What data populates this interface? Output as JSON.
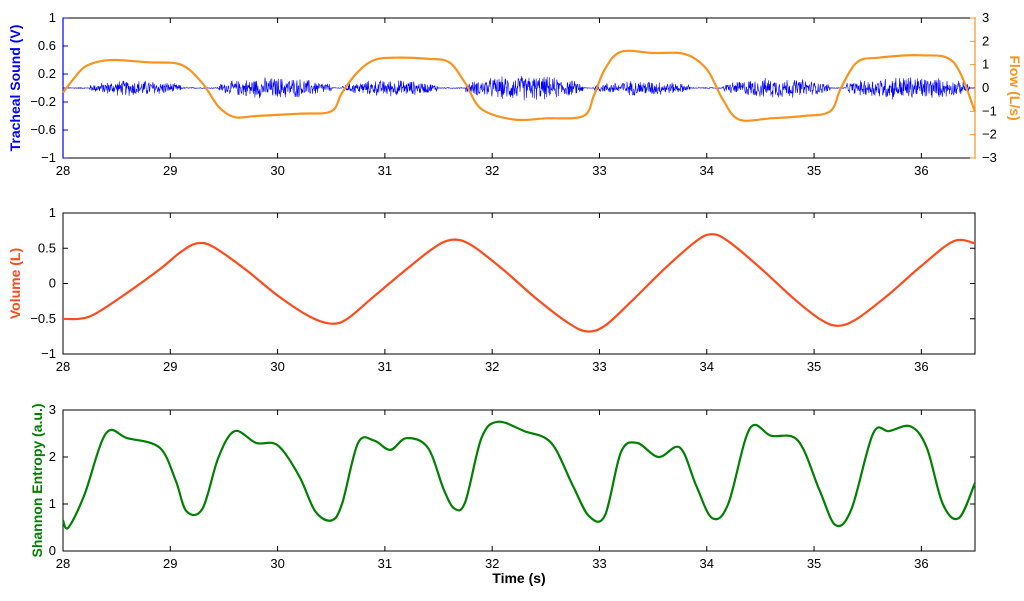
{
  "chart_data": [
    {
      "type": "line",
      "title": "",
      "xlabel": "",
      "ylabel": "Tracheal Sound (V)",
      "y2label": "Flow (L/s)",
      "xlim": [
        28,
        36.5
      ],
      "ylim": [
        -1,
        1
      ],
      "y2lim": [
        -3,
        3
      ],
      "xticks": [
        28,
        29,
        30,
        31,
        32,
        33,
        34,
        35,
        36
      ],
      "yticks": [
        -1,
        -0.6,
        -0.2,
        0.2,
        0.6,
        1
      ],
      "y2ticks": [
        -3,
        -2,
        -1,
        0,
        1,
        2,
        3
      ],
      "colors": {
        "sound": "#0000ff",
        "flow": "#f7931e"
      },
      "sound_bursts": [
        {
          "x": [
            28.25,
            29.1
          ],
          "amplitude": 0.13
        },
        {
          "x": [
            29.45,
            30.5
          ],
          "amplitude": 0.17
        },
        {
          "x": [
            30.6,
            31.5
          ],
          "amplitude": 0.13
        },
        {
          "x": [
            31.75,
            32.85
          ],
          "amplitude": 0.2
        },
        {
          "x": [
            32.95,
            33.85
          ],
          "amplitude": 0.12
        },
        {
          "x": [
            34.15,
            35.15
          ],
          "amplitude": 0.16
        },
        {
          "x": [
            35.3,
            36.45
          ],
          "amplitude": 0.19
        }
      ],
      "series": [
        {
          "axis": "right",
          "x": [
            28,
            28.1,
            28.2,
            28.35,
            28.5,
            28.8,
            29.1,
            29.3,
            29.45,
            29.6,
            29.8,
            30.2,
            30.5,
            30.6,
            30.75,
            30.9,
            31.1,
            31.4,
            31.6,
            31.75,
            31.9,
            32.2,
            32.5,
            32.85,
            32.95,
            33.05,
            33.2,
            33.5,
            33.8,
            34.0,
            34.15,
            34.3,
            34.6,
            34.9,
            35.15,
            35.25,
            35.4,
            35.6,
            36.0,
            36.3,
            36.5
          ],
          "values": [
            -0.2,
            0.4,
            0.9,
            1.15,
            1.2,
            1.1,
            1.0,
            0.2,
            -0.8,
            -1.25,
            -1.2,
            -1.1,
            -1.0,
            -0.2,
            0.7,
            1.2,
            1.3,
            1.25,
            1.1,
            0.2,
            -0.9,
            -1.35,
            -1.3,
            -1.2,
            -0.3,
            0.8,
            1.55,
            1.5,
            1.45,
            0.8,
            -0.5,
            -1.35,
            -1.3,
            -1.2,
            -1.0,
            0.0,
            1.1,
            1.3,
            1.4,
            1.1,
            -1.0
          ]
        }
      ]
    },
    {
      "type": "line",
      "title": "",
      "xlabel": "",
      "ylabel": "Volume (L)",
      "xlim": [
        28,
        36.5
      ],
      "ylim": [
        -1,
        1
      ],
      "xticks": [
        28,
        29,
        30,
        31,
        32,
        33,
        34,
        35,
        36
      ],
      "yticks": [
        -1,
        -0.5,
        0,
        0.5,
        1
      ],
      "colors": {
        "volume": "#ff4a1c"
      },
      "series": [
        {
          "x": [
            28,
            28.15,
            28.3,
            28.6,
            28.9,
            29.1,
            29.25,
            29.4,
            29.7,
            30.0,
            30.3,
            30.5,
            30.65,
            30.9,
            31.2,
            31.45,
            31.62,
            31.8,
            32.1,
            32.4,
            32.7,
            32.88,
            33.05,
            33.3,
            33.6,
            33.9,
            34.05,
            34.2,
            34.5,
            34.8,
            35.05,
            35.22,
            35.4,
            35.7,
            36.0,
            36.3,
            36.5
          ],
          "values": [
            -0.5,
            -0.5,
            -0.43,
            -0.13,
            0.2,
            0.45,
            0.57,
            0.52,
            0.2,
            -0.17,
            -0.47,
            -0.57,
            -0.5,
            -0.18,
            0.2,
            0.5,
            0.62,
            0.55,
            0.2,
            -0.2,
            -0.55,
            -0.68,
            -0.6,
            -0.25,
            0.2,
            0.6,
            0.7,
            0.6,
            0.22,
            -0.2,
            -0.5,
            -0.6,
            -0.5,
            -0.15,
            0.25,
            0.6,
            0.57
          ]
        }
      ]
    },
    {
      "type": "line",
      "title": "",
      "xlabel": "Time (s)",
      "ylabel": "Shannon Entropy (a.u.)",
      "xlim": [
        28,
        36.5
      ],
      "ylim": [
        0,
        3
      ],
      "xticks": [
        28,
        29,
        30,
        31,
        32,
        33,
        34,
        35,
        36
      ],
      "yticks": [
        0,
        1,
        2,
        3
      ],
      "colors": {
        "entropy": "#008000"
      },
      "series": [
        {
          "x": [
            28,
            28.05,
            28.2,
            28.4,
            28.6,
            28.9,
            29.05,
            29.15,
            29.3,
            29.45,
            29.6,
            29.8,
            30.0,
            30.2,
            30.35,
            30.5,
            30.6,
            30.75,
            30.9,
            31.05,
            31.2,
            31.4,
            31.55,
            31.65,
            31.75,
            31.9,
            32.05,
            32.3,
            32.55,
            32.75,
            32.9,
            33.05,
            33.2,
            33.35,
            33.55,
            33.75,
            33.9,
            34.05,
            34.2,
            34.4,
            34.6,
            34.85,
            35.05,
            35.2,
            35.35,
            35.55,
            35.7,
            35.9,
            36.05,
            36.2,
            36.35,
            36.5
          ],
          "values": [
            0.65,
            0.5,
            1.2,
            2.5,
            2.4,
            2.2,
            1.5,
            0.85,
            0.9,
            2.0,
            2.55,
            2.3,
            2.25,
            1.6,
            0.85,
            0.65,
            1.0,
            2.3,
            2.35,
            2.15,
            2.4,
            2.2,
            1.3,
            0.9,
            1.05,
            2.4,
            2.75,
            2.55,
            2.3,
            1.4,
            0.75,
            0.75,
            2.1,
            2.3,
            2.0,
            2.2,
            1.4,
            0.7,
            1.0,
            2.6,
            2.45,
            2.35,
            1.3,
            0.55,
            0.9,
            2.5,
            2.55,
            2.65,
            2.2,
            1.0,
            0.7,
            1.45
          ]
        }
      ]
    }
  ]
}
